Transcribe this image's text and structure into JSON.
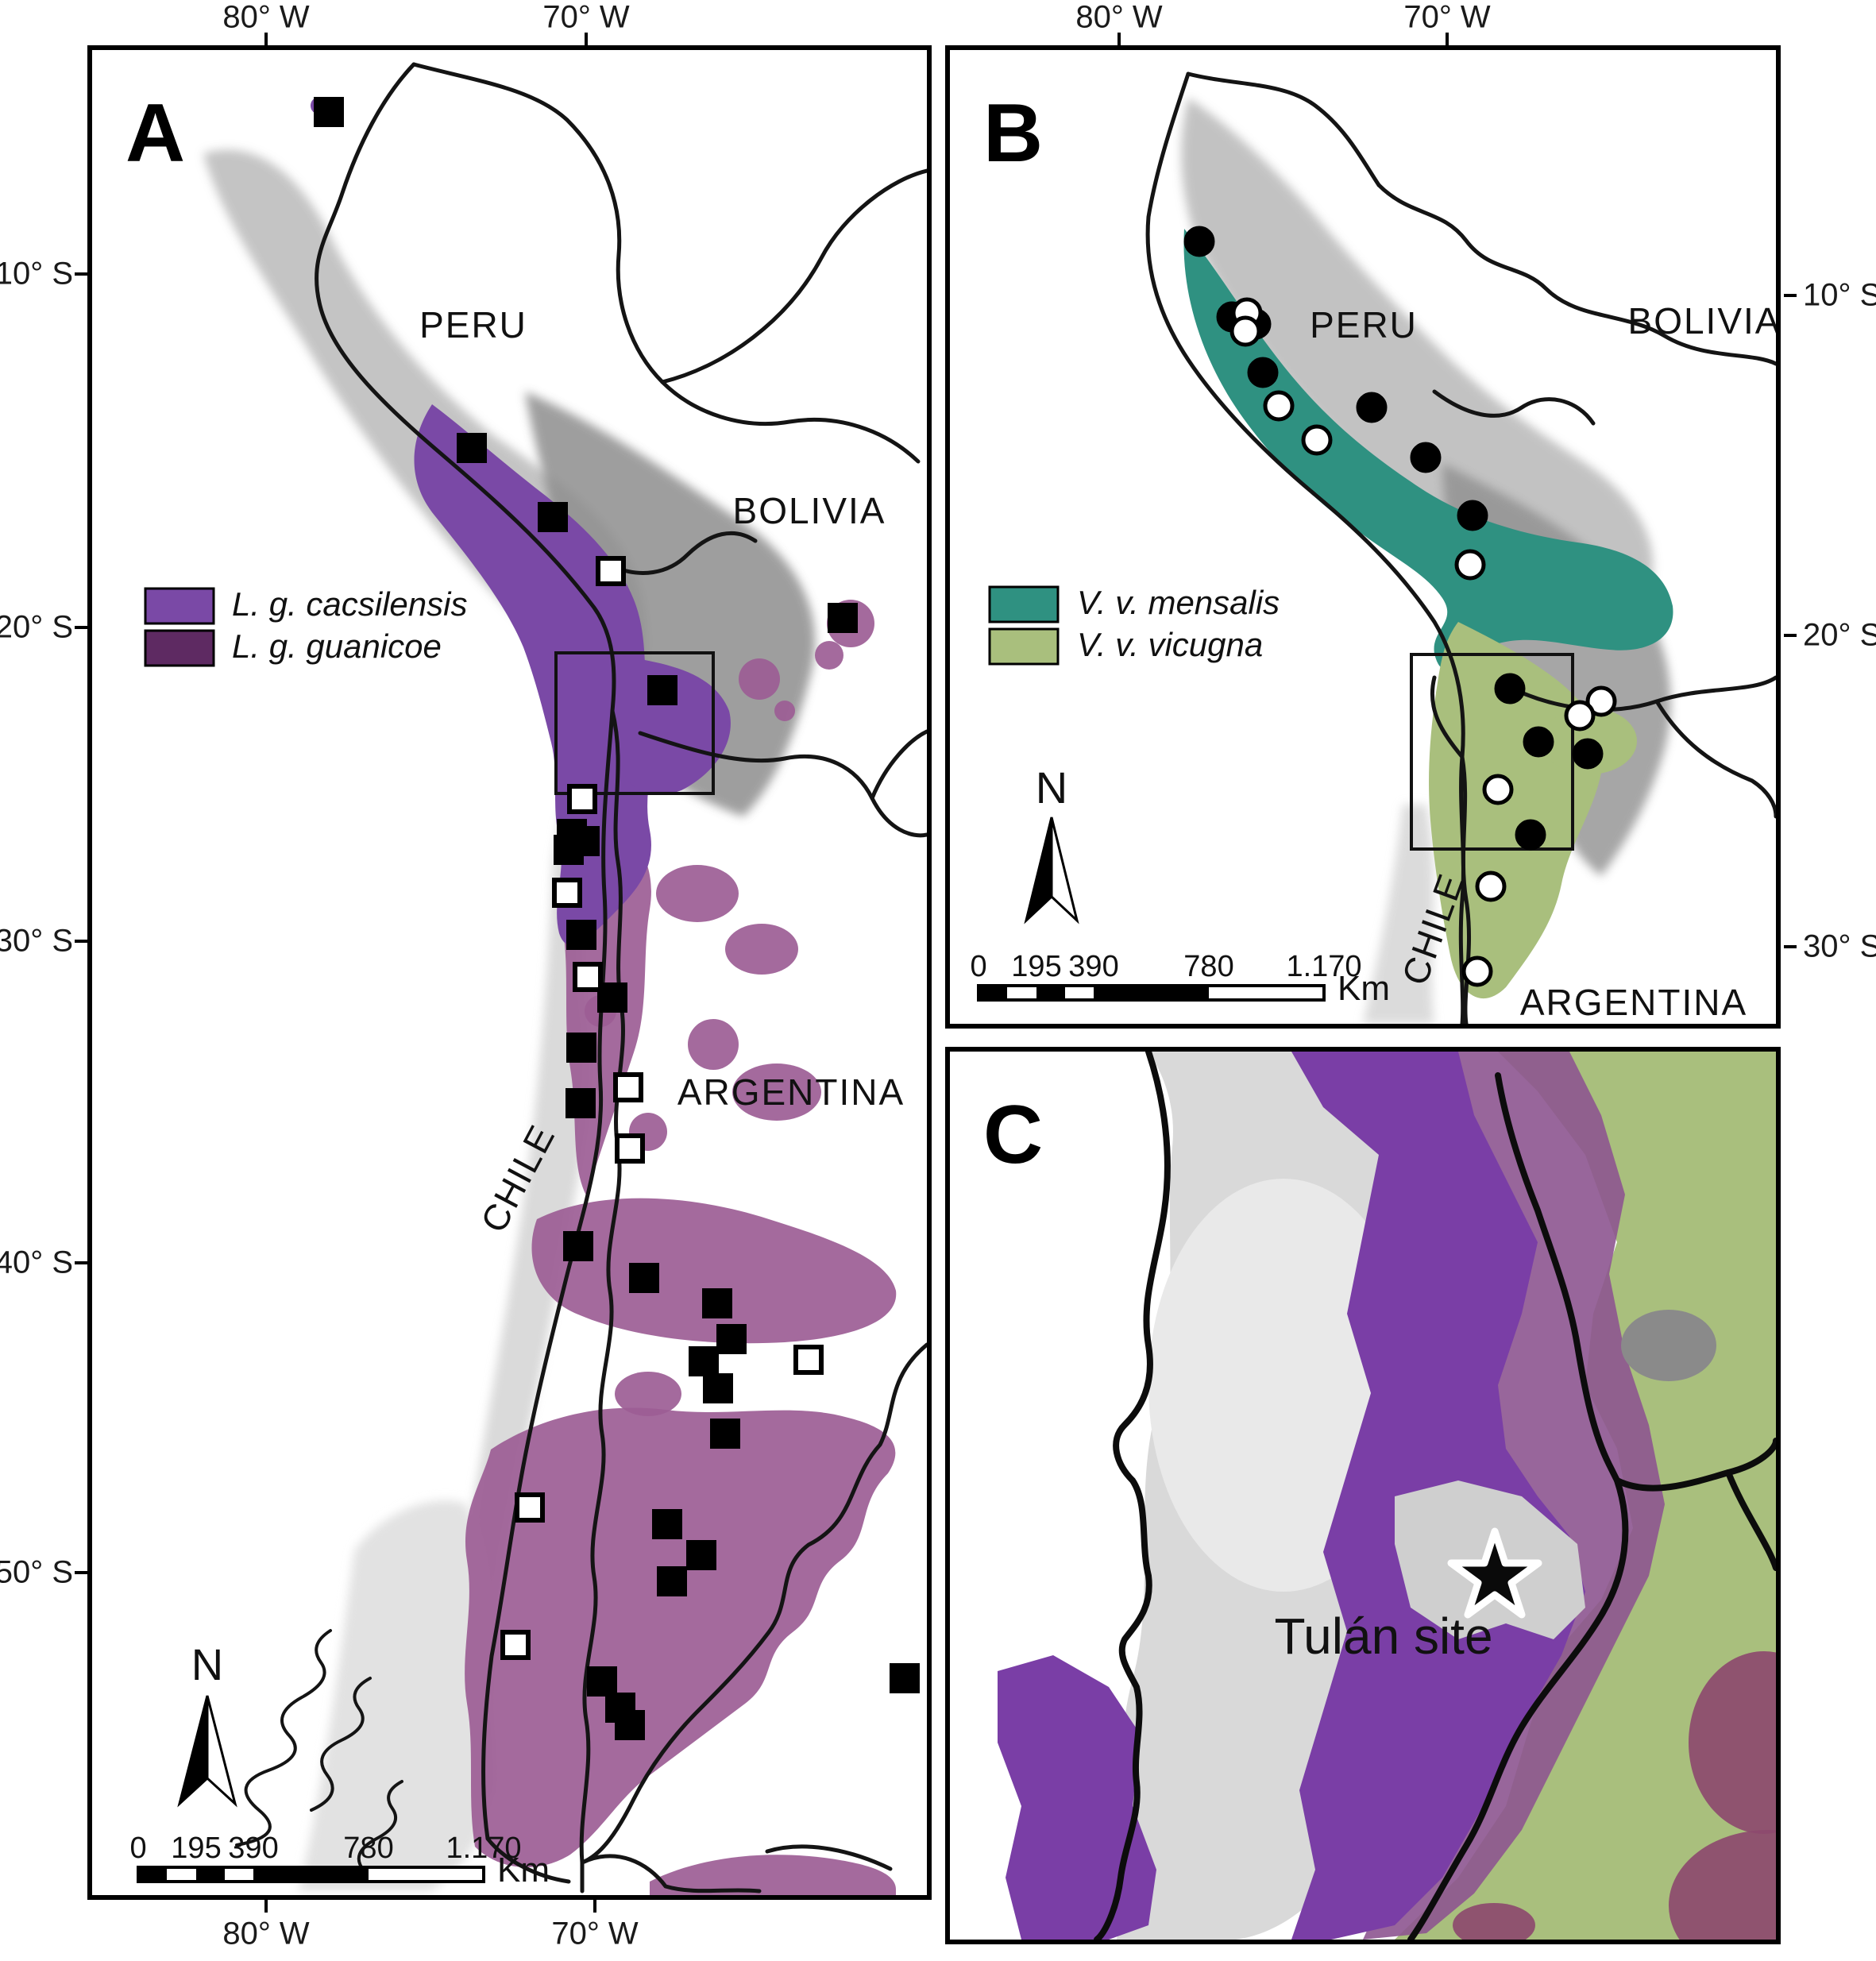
{
  "colors": {
    "cacsilensis": "#7a49a6",
    "guanicoe_legend": "#5e2a62",
    "guanicoe_map": "#9c5d95",
    "mensalis": "#2f9181",
    "vicugna": "#a9bf7d",
    "overlap_maroon": "#8d4a6e",
    "terrain_light": "#d6d6d6",
    "terrain_mid": "#b6b6b6",
    "terrain_dark": "#8e8e8e",
    "border_line": "#141414"
  },
  "axis": {
    "panelA_top": [
      "80° W",
      "70° W"
    ],
    "panelA_bottom": [
      "80° W",
      "70° W"
    ],
    "panelA_left": [
      "10° S",
      "20° S",
      "30° S",
      "40° S",
      "50° S"
    ],
    "panelB_top": [
      "80° W",
      "70° W"
    ],
    "panelB_right": [
      "10° S",
      "20° S",
      "30° S"
    ]
  },
  "panelA": {
    "label": "A",
    "countries": {
      "peru": "PERU",
      "bolivia": "BOLIVIA",
      "chile": "CHILE",
      "argentina": "ARGENTINA"
    },
    "legend": [
      {
        "label": "L. g. cacsilensis",
        "color": "#7a49a6"
      },
      {
        "label": "L. g. guanicoe",
        "color": "#5e2a62"
      }
    ],
    "north": "N",
    "scalebar": {
      "ticks": [
        "0",
        "195",
        "390",
        "780",
        "1.170"
      ],
      "unit": "Km"
    },
    "markers": {
      "black_squares": [
        [
          298,
          78
        ],
        [
          478,
          501
        ],
        [
          580,
          588
        ],
        [
          718,
          806
        ],
        [
          945,
          715
        ],
        [
          604,
          987
        ],
        [
          620,
          996
        ],
        [
          600,
          1007
        ],
        [
          616,
          1114
        ],
        [
          655,
          1193
        ],
        [
          616,
          1256
        ],
        [
          615,
          1326
        ],
        [
          612,
          1506
        ],
        [
          695,
          1546
        ],
        [
          787,
          1578
        ],
        [
          805,
          1623
        ],
        [
          770,
          1651
        ],
        [
          788,
          1685
        ],
        [
          797,
          1742
        ],
        [
          724,
          1856
        ],
        [
          767,
          1895
        ],
        [
          730,
          1928
        ],
        [
          642,
          2054
        ],
        [
          665,
          2087
        ],
        [
          677,
          2109
        ],
        [
          1023,
          2050
        ]
      ],
      "white_squares": [
        [
          653,
          656
        ],
        [
          617,
          943
        ],
        [
          598,
          1061
        ],
        [
          624,
          1167
        ],
        [
          675,
          1306
        ],
        [
          677,
          1383
        ],
        [
          902,
          1649
        ],
        [
          551,
          1835
        ],
        [
          533,
          2008
        ]
      ]
    }
  },
  "panelB": {
    "label": "B",
    "countries": {
      "peru": "PERU",
      "bolivia": "BOLIVIA",
      "chile": "CHILE",
      "argentina": "ARGENTINA"
    },
    "legend": [
      {
        "label": "V. v. mensalis",
        "color": "#2f9181"
      },
      {
        "label": "V. v. vicugna",
        "color": "#a9bf7d"
      }
    ],
    "north": "N",
    "scalebar": {
      "ticks": [
        "0",
        "195",
        "390",
        "780",
        "1.170"
      ],
      "unit": "Km"
    },
    "markers": {
      "black_dots": [
        [
          314,
          241
        ],
        [
          355,
          336
        ],
        [
          385,
          345
        ],
        [
          394,
          406
        ],
        [
          531,
          450
        ],
        [
          599,
          513
        ],
        [
          658,
          586
        ],
        [
          705,
          804
        ],
        [
          741,
          871
        ],
        [
          803,
          886
        ],
        [
          731,
          988
        ]
      ],
      "white_dots": [
        [
          374,
          331
        ],
        [
          372,
          354
        ],
        [
          414,
          448
        ],
        [
          462,
          491
        ],
        [
          655,
          648
        ],
        [
          820,
          820
        ],
        [
          793,
          838
        ],
        [
          690,
          931
        ],
        [
          681,
          1053
        ],
        [
          664,
          1160
        ]
      ]
    }
  },
  "panelC": {
    "label": "C",
    "site": "Tulán site"
  }
}
